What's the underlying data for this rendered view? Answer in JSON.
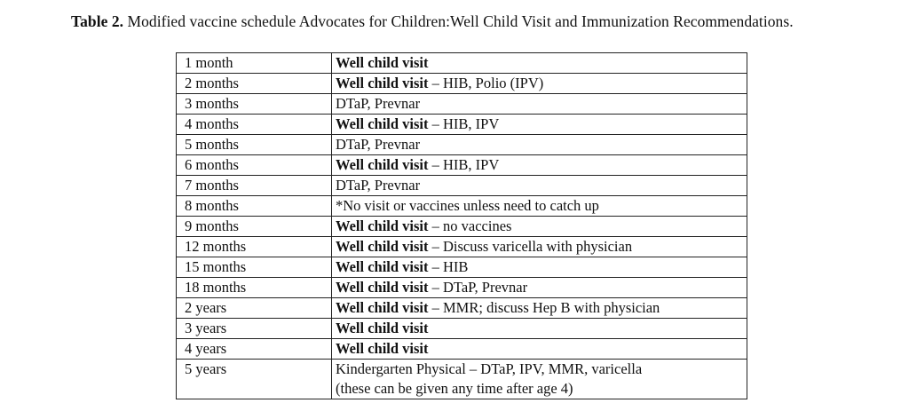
{
  "caption": {
    "label": "Table 2.",
    "text": "Modified vaccine schedule Advocates for Children:Well Child Visit and Immunization Recommendations."
  },
  "rows": [
    {
      "age": "1 month",
      "visit": "Well child visit",
      "details": ""
    },
    {
      "age": "2 months",
      "visit": "Well child visit",
      "details": " – HIB, Polio (IPV)"
    },
    {
      "age": "3 months",
      "visit": "",
      "details": "DTaP, Prevnar"
    },
    {
      "age": "4 months",
      "visit": "Well child visit",
      "details": " – HIB, IPV"
    },
    {
      "age": "5 months",
      "visit": "",
      "details": "DTaP, Prevnar"
    },
    {
      "age": "6 months",
      "visit": "Well child visit",
      "details": " – HIB, IPV"
    },
    {
      "age": "7 months",
      "visit": "",
      "details": "DTaP, Prevnar"
    },
    {
      "age": "8 months",
      "visit": "",
      "details": "*No visit or vaccines unless need to catch up"
    },
    {
      "age": "9 months",
      "visit": "Well child visit",
      "details": " – no vaccines"
    },
    {
      "age": "12 months",
      "visit": "Well child visit",
      "details": " – Discuss varicella with physician"
    },
    {
      "age": "15 months",
      "visit": "Well child visit",
      "details": " – HIB"
    },
    {
      "age": "18 months",
      "visit": "Well child visit",
      "details": " – DTaP, Prevnar"
    },
    {
      "age": "2 years",
      "visit": "Well child visit",
      "details": " – MMR; discuss Hep B with physician"
    },
    {
      "age": "3 years",
      "visit": "Well child visit",
      "details": ""
    },
    {
      "age": "4 years",
      "visit": "Well child visit",
      "details": ""
    },
    {
      "age": "5 years",
      "visit": "",
      "details": "Kindergarten Physical – DTaP, IPV, MMR, varicella",
      "details_line2": "(these can be given any time after age 4)"
    }
  ]
}
